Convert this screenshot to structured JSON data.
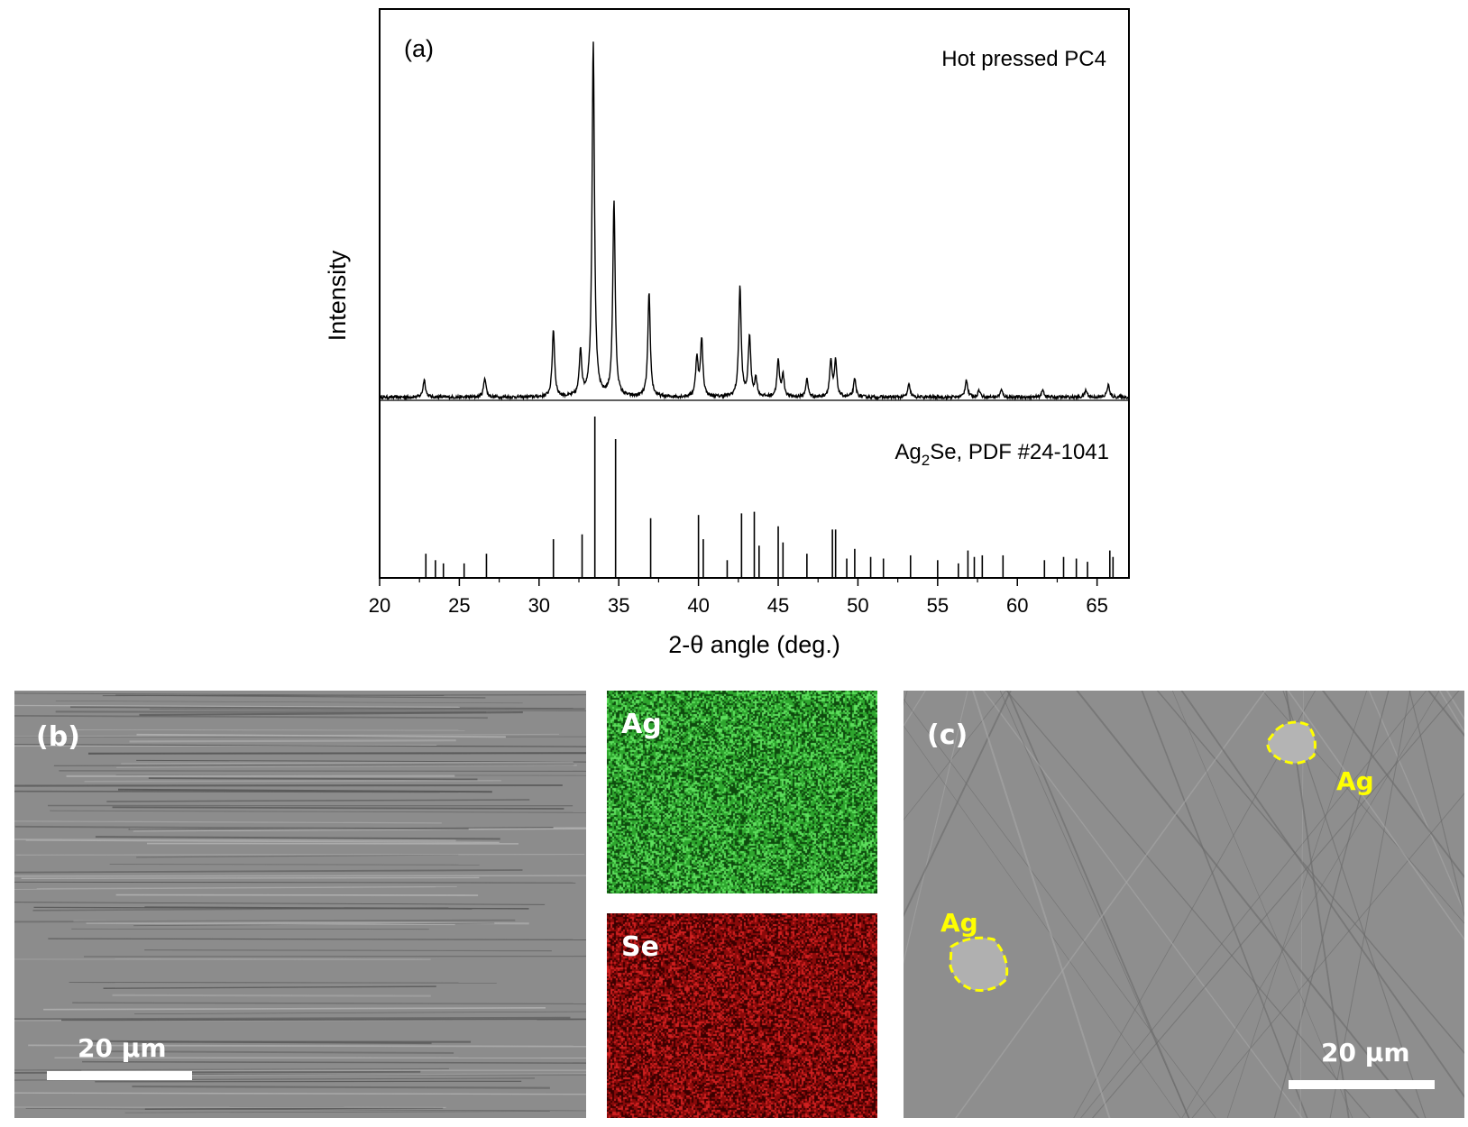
{
  "chart_data": {
    "type": "line",
    "panel_label": "(a)",
    "xlabel": "2-θ angle (deg.)",
    "ylabel": "Intensity",
    "xlim": [
      20,
      67
    ],
    "x_ticks": [
      20,
      25,
      30,
      35,
      40,
      45,
      50,
      55,
      60,
      65
    ],
    "y_ticks": [],
    "grid": false,
    "series": [
      {
        "name": "Hot pressed PC4",
        "peaks": [
          {
            "x": 22.8,
            "y": 5
          },
          {
            "x": 26.6,
            "y": 5.5
          },
          {
            "x": 30.9,
            "y": 19
          },
          {
            "x": 32.6,
            "y": 13
          },
          {
            "x": 33.4,
            "y": 100
          },
          {
            "x": 34.7,
            "y": 55
          },
          {
            "x": 36.9,
            "y": 29
          },
          {
            "x": 39.9,
            "y": 11
          },
          {
            "x": 40.2,
            "y": 16
          },
          {
            "x": 42.6,
            "y": 31
          },
          {
            "x": 43.2,
            "y": 17
          },
          {
            "x": 43.6,
            "y": 5
          },
          {
            "x": 45.0,
            "y": 10
          },
          {
            "x": 45.3,
            "y": 6
          },
          {
            "x": 46.8,
            "y": 5
          },
          {
            "x": 48.3,
            "y": 10
          },
          {
            "x": 48.6,
            "y": 10
          },
          {
            "x": 49.8,
            "y": 5
          },
          {
            "x": 53.2,
            "y": 3.5
          },
          {
            "x": 56.8,
            "y": 5
          },
          {
            "x": 57.6,
            "y": 2
          },
          {
            "x": 59.0,
            "y": 2
          },
          {
            "x": 61.6,
            "y": 2
          },
          {
            "x": 64.3,
            "y": 2
          },
          {
            "x": 65.7,
            "y": 3.5
          }
        ]
      },
      {
        "name": "Ag2Se, PDF #24-1041",
        "label_main": "Ag",
        "label_sub": "2",
        "label_rest": "Se, PDF #24-1041",
        "sticks": [
          {
            "x": 22.9,
            "y": 15
          },
          {
            "x": 23.5,
            "y": 11
          },
          {
            "x": 24.0,
            "y": 9
          },
          {
            "x": 25.3,
            "y": 9
          },
          {
            "x": 26.7,
            "y": 15
          },
          {
            "x": 30.9,
            "y": 24
          },
          {
            "x": 32.7,
            "y": 27
          },
          {
            "x": 33.5,
            "y": 100
          },
          {
            "x": 34.8,
            "y": 86
          },
          {
            "x": 37.0,
            "y": 37
          },
          {
            "x": 40.0,
            "y": 39
          },
          {
            "x": 40.3,
            "y": 24
          },
          {
            "x": 41.8,
            "y": 11
          },
          {
            "x": 42.7,
            "y": 40
          },
          {
            "x": 43.5,
            "y": 41
          },
          {
            "x": 43.8,
            "y": 20
          },
          {
            "x": 45.0,
            "y": 32
          },
          {
            "x": 45.3,
            "y": 22
          },
          {
            "x": 46.8,
            "y": 15
          },
          {
            "x": 48.4,
            "y": 30
          },
          {
            "x": 48.6,
            "y": 30
          },
          {
            "x": 49.3,
            "y": 12
          },
          {
            "x": 49.8,
            "y": 18
          },
          {
            "x": 50.8,
            "y": 13
          },
          {
            "x": 51.6,
            "y": 12
          },
          {
            "x": 53.3,
            "y": 14
          },
          {
            "x": 55.0,
            "y": 11
          },
          {
            "x": 56.3,
            "y": 9
          },
          {
            "x": 56.9,
            "y": 17
          },
          {
            "x": 57.3,
            "y": 13
          },
          {
            "x": 57.8,
            "y": 14
          },
          {
            "x": 59.1,
            "y": 14
          },
          {
            "x": 61.7,
            "y": 11
          },
          {
            "x": 62.9,
            "y": 13
          },
          {
            "x": 63.7,
            "y": 12
          },
          {
            "x": 64.4,
            "y": 10
          },
          {
            "x": 65.8,
            "y": 17
          },
          {
            "x": 66.0,
            "y": 13
          }
        ]
      }
    ]
  },
  "panels": {
    "b": {
      "label": "(b)",
      "scale_text": "20 μm",
      "background": "#8c8c8c"
    },
    "maps": [
      {
        "label": "Ag",
        "color": "#2ea52e",
        "dark": "#0d4a0d",
        "light": "#5ee05e"
      },
      {
        "label": "Se",
        "color": "#8a0a0a",
        "dark": "#3a0000",
        "light": "#d02020"
      }
    ],
    "c": {
      "label": "(c)",
      "scale_text": "20 μm",
      "background": "#8e8e8e",
      "annotations": [
        {
          "label": "Ag",
          "color": "#ffff00"
        },
        {
          "label": "Ag",
          "color": "#ffff00"
        }
      ]
    }
  }
}
